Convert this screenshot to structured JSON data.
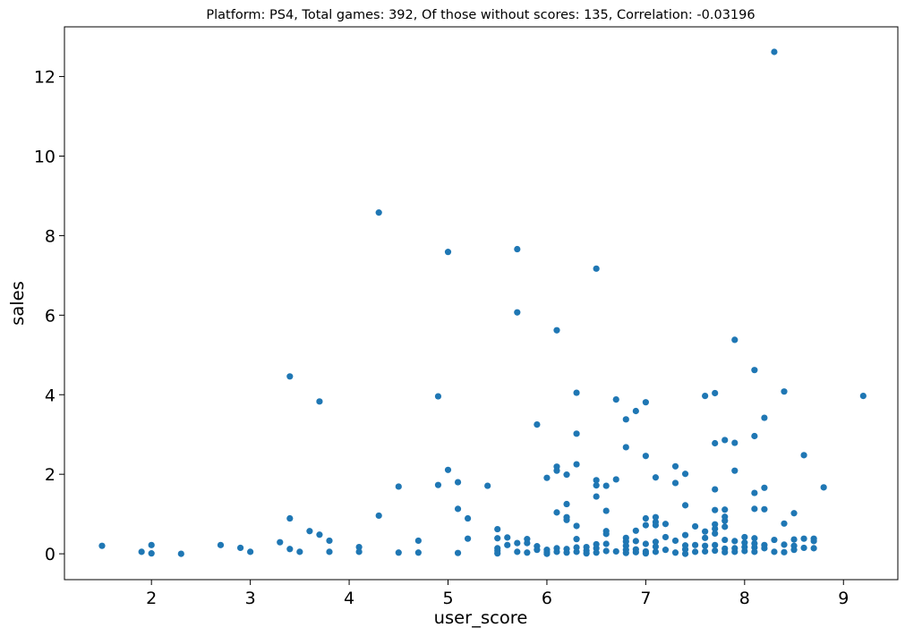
{
  "chart_data": {
    "type": "scatter",
    "title": "Platform: PS4, Total games: 392, Of those without scores: 135, Correlation: -0.03196",
    "xlabel": "user_score",
    "ylabel": "sales",
    "xlim": [
      1.12,
      9.55
    ],
    "ylim": [
      -0.65,
      13.25
    ],
    "xticks": [
      2,
      3,
      4,
      5,
      6,
      7,
      8,
      9
    ],
    "yticks": [
      0,
      2,
      4,
      6,
      8,
      10,
      12
    ],
    "xtick_labels": [
      "2",
      "3",
      "4",
      "5",
      "6",
      "7",
      "8",
      "9"
    ],
    "ytick_labels": [
      "0",
      "2",
      "4",
      "6",
      "8",
      "10",
      "12"
    ],
    "color": "#1f77b4",
    "grid": false,
    "points": [
      [
        1.5,
        0.2
      ],
      [
        1.9,
        0.05
      ],
      [
        2.0,
        0.22
      ],
      [
        2.0,
        0.01
      ],
      [
        2.3,
        0.0
      ],
      [
        2.7,
        0.22
      ],
      [
        2.9,
        0.15
      ],
      [
        3.0,
        0.05
      ],
      [
        3.3,
        0.29
      ],
      [
        3.4,
        0.12
      ],
      [
        3.4,
        0.89
      ],
      [
        3.4,
        4.46
      ],
      [
        3.5,
        0.05
      ],
      [
        3.6,
        0.57
      ],
      [
        3.7,
        0.48
      ],
      [
        3.7,
        3.83
      ],
      [
        3.8,
        0.33
      ],
      [
        3.8,
        0.05
      ],
      [
        4.1,
        0.17
      ],
      [
        4.1,
        0.05
      ],
      [
        4.3,
        0.96
      ],
      [
        4.3,
        8.58
      ],
      [
        4.5,
        1.69
      ],
      [
        4.5,
        0.03
      ],
      [
        4.7,
        0.33
      ],
      [
        4.7,
        0.03
      ],
      [
        4.9,
        1.73
      ],
      [
        4.9,
        3.96
      ],
      [
        5.0,
        2.11
      ],
      [
        5.0,
        7.59
      ],
      [
        5.1,
        1.8
      ],
      [
        5.1,
        1.13
      ],
      [
        5.1,
        0.02
      ],
      [
        5.2,
        0.89
      ],
      [
        5.2,
        0.38
      ],
      [
        5.4,
        1.71
      ],
      [
        5.5,
        0.62
      ],
      [
        5.5,
        0.39
      ],
      [
        5.5,
        0.14
      ],
      [
        5.5,
        0.08
      ],
      [
        5.5,
        0.01
      ],
      [
        5.6,
        0.41
      ],
      [
        5.6,
        0.22
      ],
      [
        5.7,
        7.66
      ],
      [
        5.7,
        6.07
      ],
      [
        5.7,
        0.27
      ],
      [
        5.7,
        0.05
      ],
      [
        5.8,
        0.37
      ],
      [
        5.8,
        0.27
      ],
      [
        5.8,
        0.03
      ],
      [
        5.9,
        3.25
      ],
      [
        5.9,
        0.19
      ],
      [
        5.9,
        0.1
      ],
      [
        6.0,
        1.91
      ],
      [
        6.0,
        0.1
      ],
      [
        6.0,
        0.04
      ],
      [
        6.0,
        0.0
      ],
      [
        6.1,
        5.62
      ],
      [
        6.1,
        2.19
      ],
      [
        6.1,
        2.09
      ],
      [
        6.1,
        1.04
      ],
      [
        6.1,
        0.14
      ],
      [
        6.1,
        0.05
      ],
      [
        6.2,
        1.99
      ],
      [
        6.2,
        1.25
      ],
      [
        6.2,
        0.92
      ],
      [
        6.2,
        0.85
      ],
      [
        6.2,
        0.12
      ],
      [
        6.2,
        0.03
      ],
      [
        6.3,
        4.05
      ],
      [
        6.3,
        3.02
      ],
      [
        6.3,
        2.25
      ],
      [
        6.3,
        0.7
      ],
      [
        6.3,
        0.37
      ],
      [
        6.3,
        0.16
      ],
      [
        6.3,
        0.05
      ],
      [
        6.4,
        0.17
      ],
      [
        6.4,
        0.08
      ],
      [
        6.4,
        0.01
      ],
      [
        6.5,
        7.17
      ],
      [
        6.5,
        1.85
      ],
      [
        6.5,
        1.72
      ],
      [
        6.5,
        1.44
      ],
      [
        6.5,
        0.24
      ],
      [
        6.5,
        0.14
      ],
      [
        6.5,
        0.03
      ],
      [
        6.6,
        1.71
      ],
      [
        6.6,
        1.08
      ],
      [
        6.6,
        0.57
      ],
      [
        6.6,
        0.5
      ],
      [
        6.6,
        0.25
      ],
      [
        6.6,
        0.07
      ],
      [
        6.7,
        3.88
      ],
      [
        6.7,
        1.87
      ],
      [
        6.7,
        0.06
      ],
      [
        6.8,
        3.38
      ],
      [
        6.8,
        2.68
      ],
      [
        6.8,
        0.4
      ],
      [
        6.8,
        0.31
      ],
      [
        6.8,
        0.2
      ],
      [
        6.8,
        0.1
      ],
      [
        6.8,
        0.02
      ],
      [
        6.9,
        3.59
      ],
      [
        6.9,
        0.58
      ],
      [
        6.9,
        0.32
      ],
      [
        6.9,
        0.11
      ],
      [
        6.9,
        0.04
      ],
      [
        7.0,
        3.81
      ],
      [
        7.0,
        2.46
      ],
      [
        7.0,
        0.89
      ],
      [
        7.0,
        0.72
      ],
      [
        7.0,
        0.25
      ],
      [
        7.0,
        0.06
      ],
      [
        7.0,
        0.01
      ],
      [
        7.1,
        1.92
      ],
      [
        7.1,
        0.92
      ],
      [
        7.1,
        0.8
      ],
      [
        7.1,
        0.72
      ],
      [
        7.1,
        0.3
      ],
      [
        7.1,
        0.18
      ],
      [
        7.1,
        0.05
      ],
      [
        7.2,
        0.75
      ],
      [
        7.2,
        0.42
      ],
      [
        7.2,
        0.1
      ],
      [
        7.3,
        2.2
      ],
      [
        7.3,
        1.78
      ],
      [
        7.3,
        0.33
      ],
      [
        7.3,
        0.03
      ],
      [
        7.4,
        2.01
      ],
      [
        7.4,
        1.22
      ],
      [
        7.4,
        0.47
      ],
      [
        7.4,
        0.21
      ],
      [
        7.4,
        0.11
      ],
      [
        7.4,
        0.0
      ],
      [
        7.5,
        0.69
      ],
      [
        7.5,
        0.22
      ],
      [
        7.5,
        0.05
      ],
      [
        7.6,
        3.97
      ],
      [
        7.6,
        0.56
      ],
      [
        7.6,
        0.4
      ],
      [
        7.6,
        0.2
      ],
      [
        7.6,
        0.06
      ],
      [
        7.7,
        4.04
      ],
      [
        7.7,
        2.78
      ],
      [
        7.7,
        1.62
      ],
      [
        7.7,
        1.1
      ],
      [
        7.7,
        0.74
      ],
      [
        7.7,
        0.63
      ],
      [
        7.7,
        0.51
      ],
      [
        7.7,
        0.22
      ],
      [
        7.7,
        0.08
      ],
      [
        7.8,
        2.86
      ],
      [
        7.8,
        1.11
      ],
      [
        7.8,
        0.93
      ],
      [
        7.8,
        0.83
      ],
      [
        7.8,
        0.68
      ],
      [
        7.8,
        0.35
      ],
      [
        7.8,
        0.13
      ],
      [
        7.8,
        0.04
      ],
      [
        7.9,
        5.38
      ],
      [
        7.9,
        2.79
      ],
      [
        7.9,
        2.09
      ],
      [
        7.9,
        0.32
      ],
      [
        7.9,
        0.14
      ],
      [
        7.9,
        0.05
      ],
      [
        8.0,
        0.42
      ],
      [
        8.0,
        0.28
      ],
      [
        8.0,
        0.17
      ],
      [
        8.0,
        0.07
      ],
      [
        8.1,
        4.62
      ],
      [
        8.1,
        2.96
      ],
      [
        8.1,
        1.53
      ],
      [
        8.1,
        1.13
      ],
      [
        8.1,
        0.39
      ],
      [
        8.1,
        0.26
      ],
      [
        8.1,
        0.16
      ],
      [
        8.1,
        0.05
      ],
      [
        8.2,
        3.42
      ],
      [
        8.2,
        1.66
      ],
      [
        8.2,
        1.12
      ],
      [
        8.2,
        0.22
      ],
      [
        8.2,
        0.14
      ],
      [
        8.3,
        12.62
      ],
      [
        8.3,
        0.35
      ],
      [
        8.3,
        0.05
      ],
      [
        8.4,
        4.08
      ],
      [
        8.4,
        0.76
      ],
      [
        8.4,
        0.23
      ],
      [
        8.4,
        0.04
      ],
      [
        8.5,
        1.02
      ],
      [
        8.5,
        0.36
      ],
      [
        8.5,
        0.2
      ],
      [
        8.5,
        0.1
      ],
      [
        8.6,
        2.48
      ],
      [
        8.6,
        0.38
      ],
      [
        8.6,
        0.15
      ],
      [
        8.7,
        0.38
      ],
      [
        8.7,
        0.32
      ],
      [
        8.7,
        0.14
      ],
      [
        8.8,
        1.67
      ],
      [
        9.2,
        3.97
      ]
    ]
  }
}
